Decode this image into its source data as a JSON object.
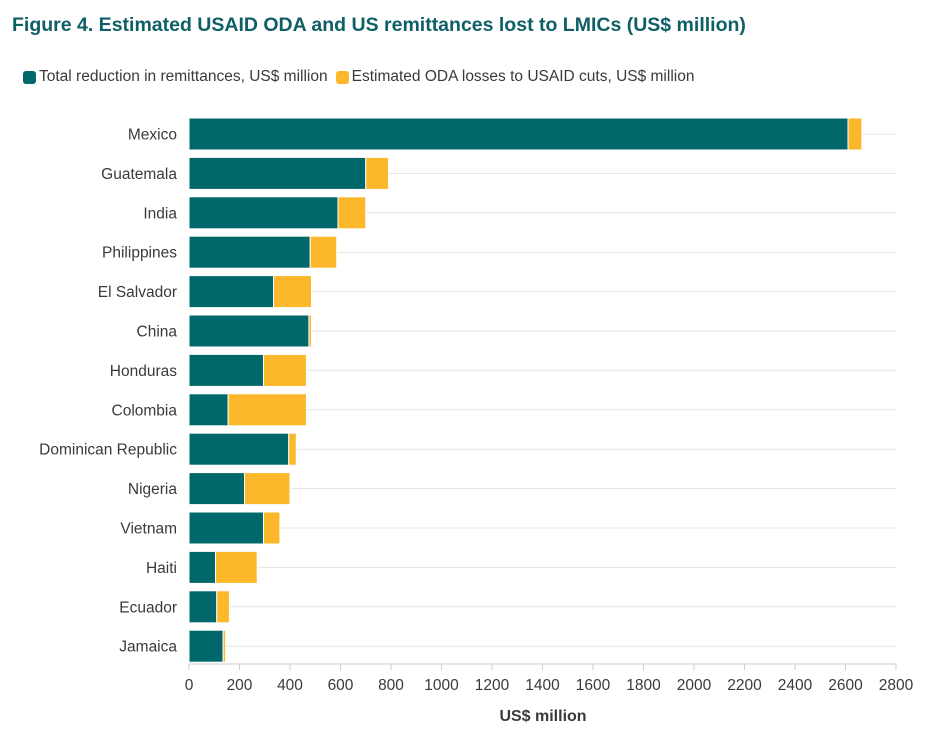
{
  "chart_data": {
    "type": "bar",
    "orientation": "horizontal",
    "stacked": true,
    "title": "Figure 4. Estimated USAID ODA and US remittances lost to LMICs (US$ million)",
    "xlabel": "US$ million",
    "ylabel": "",
    "xlim": [
      0,
      2800
    ],
    "x_ticks": [
      "0",
      "200",
      "400",
      "600",
      "800",
      "1000",
      "1200",
      "1400",
      "1600",
      "1800",
      "2000",
      "2200",
      "2400",
      "2600",
      "2800"
    ],
    "grid": "horizontal lines per category",
    "legend_position": "top-left",
    "categories": [
      "Mexico",
      "Guatemala",
      "India",
      "Philippines",
      "El Salvador",
      "China",
      "Honduras",
      "Colombia",
      "Dominican Republic",
      "Nigeria",
      "Vietnam",
      "Haiti",
      "Ecuador",
      "Jamaica"
    ],
    "series": [
      {
        "name": "Total reduction in remittances, US$ million",
        "color": "#00686b",
        "values": [
          2610,
          700,
          590,
          480,
          335,
          475,
          295,
          155,
          395,
          220,
          295,
          105,
          110,
          135
        ]
      },
      {
        "name": "Estimated ODA losses to USAID cuts, US$ million",
        "color": "#fcb72a",
        "values": [
          55,
          90,
          110,
          105,
          150,
          10,
          170,
          310,
          30,
          180,
          65,
          165,
          50,
          10
        ]
      }
    ]
  }
}
